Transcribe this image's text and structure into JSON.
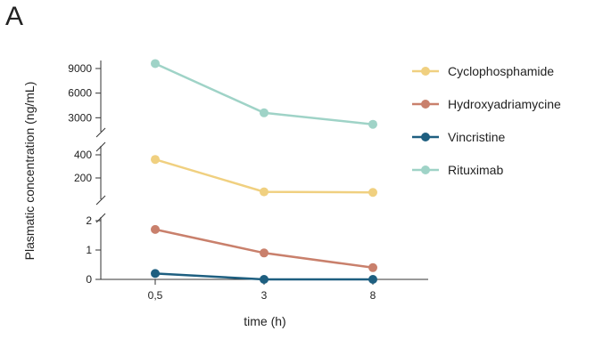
{
  "panel_label": "A",
  "chart_data": {
    "type": "line",
    "xlabel": "time (h)",
    "ylabel": "Plasmatic concentration (ng/mL)",
    "categories": [
      "0,5",
      "3",
      "8"
    ],
    "y_axis_segments": [
      {
        "ylim": [
          0,
          2
        ],
        "ticks": [
          0,
          1,
          2
        ],
        "tick_labels": [
          "0",
          "1",
          "2"
        ]
      },
      {
        "ylim": [
          0,
          400
        ],
        "ticks": [
          200,
          400
        ],
        "tick_labels": [
          "200",
          "400"
        ]
      },
      {
        "ylim": [
          0,
          9000
        ],
        "ticks": [
          3000,
          6000,
          9000
        ],
        "tick_labels": [
          "3000",
          "6000",
          "9000"
        ]
      }
    ],
    "series": [
      {
        "name": "Cyclophosphamide",
        "color": "#f0d080",
        "segment": 1,
        "values": [
          360,
          80,
          75
        ]
      },
      {
        "name": "Hydroxyadriamycine",
        "color": "#c9806c",
        "segment": 0,
        "values": [
          1.7,
          0.9,
          0.4
        ]
      },
      {
        "name": "Vincristine",
        "color": "#1e5f80",
        "segment": 0,
        "values": [
          0.2,
          0.0,
          0.0
        ]
      },
      {
        "name": "Rituximab",
        "color": "#9fd3c7",
        "segment": 2,
        "values": [
          9600,
          3600,
          2200
        ]
      }
    ],
    "legend_position": "right",
    "grid": false
  }
}
